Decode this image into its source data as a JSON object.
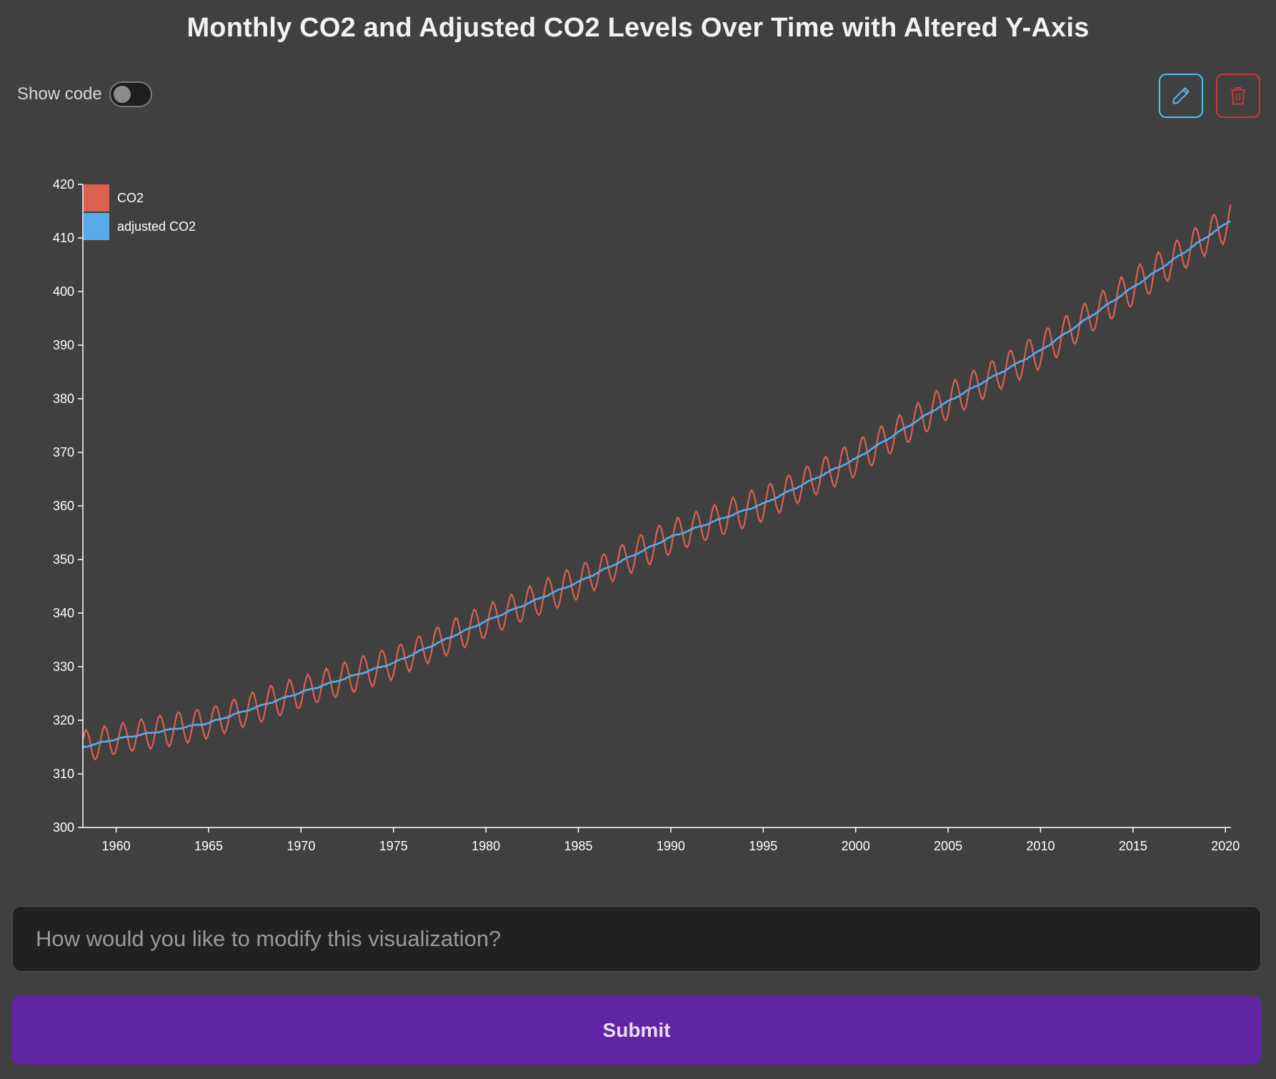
{
  "header": {
    "title": "Monthly CO2 and Adjusted CO2 Levels Over Time with Altered Y-Axis"
  },
  "toolbar": {
    "show_code_label": "Show code",
    "show_code_on": false,
    "edit_icon": "pencil-icon",
    "delete_icon": "trash-icon"
  },
  "colors": {
    "background": "#404040",
    "co2": "#dc6050",
    "adjusted_co2": "#58aaeb",
    "edit_accent": "#4fc3e8",
    "delete_accent": "#c8373b",
    "submit": "#6125a4"
  },
  "chart_data": {
    "type": "line",
    "title": "",
    "xlabel": "",
    "ylabel": "",
    "xlim": [
      1958.2,
      2020.3
    ],
    "ylim": [
      300,
      420
    ],
    "x_ticks": [
      1960,
      1965,
      1970,
      1975,
      1980,
      1985,
      1990,
      1995,
      2000,
      2005,
      2010,
      2015,
      2020
    ],
    "y_ticks": [
      300,
      310,
      320,
      330,
      340,
      350,
      360,
      370,
      380,
      390,
      400,
      410,
      420
    ],
    "legend": {
      "placement": "top-left",
      "entries": [
        "CO2",
        "adjusted CO2"
      ]
    },
    "grid": false,
    "trend_anchors": {
      "year": [
        1958.2,
        1960,
        1965,
        1970,
        1975,
        1980,
        1985,
        1990,
        1995,
        2000,
        2005,
        2010,
        2015,
        2020.3
      ],
      "value": [
        315.0,
        316.5,
        319.5,
        325.2,
        330.7,
        338.5,
        345.8,
        354.2,
        360.4,
        368.8,
        379.5,
        389.0,
        400.8,
        413.3
      ]
    },
    "seasonal_amplitude": {
      "year": [
        1958,
        2020
      ],
      "value": [
        2.9,
        3.3
      ]
    },
    "series": [
      {
        "name": "CO2",
        "type": "monthly",
        "color_key": "co2"
      },
      {
        "name": "adjusted CO2",
        "type": "seasonally_adjusted",
        "color_key": "adjusted_co2"
      }
    ]
  },
  "form": {
    "prompt_placeholder": "How would you like to modify this visualization?",
    "prompt_value": "",
    "submit_label": "Submit"
  }
}
